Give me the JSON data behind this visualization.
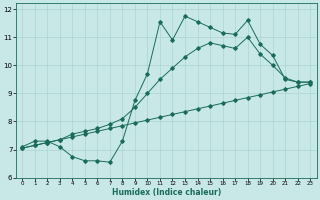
{
  "xlabel": "Humidex (Indice chaleur)",
  "bg_color": "#c8e8e8",
  "grid_color": "#aad4cc",
  "line_color": "#1a6b5a",
  "xlim": [
    -0.5,
    23.5
  ],
  "ylim": [
    6,
    12.2
  ],
  "xticks": [
    0,
    1,
    2,
    3,
    4,
    5,
    6,
    7,
    8,
    9,
    10,
    11,
    12,
    13,
    14,
    15,
    16,
    17,
    18,
    19,
    20,
    21,
    22,
    23
  ],
  "yticks": [
    6,
    7,
    8,
    9,
    10,
    11,
    12
  ],
  "series1_x": [
    0,
    1,
    2,
    3,
    4,
    5,
    6,
    7,
    8,
    9,
    10,
    11,
    12,
    13,
    14,
    15,
    16,
    17,
    18,
    19,
    20,
    21,
    22,
    23
  ],
  "series1_y": [
    7.1,
    7.3,
    7.3,
    7.1,
    6.75,
    6.6,
    6.6,
    6.55,
    7.3,
    8.75,
    9.7,
    11.55,
    10.9,
    11.75,
    11.55,
    11.35,
    11.15,
    11.1,
    11.6,
    10.75,
    10.35,
    9.5,
    9.4,
    9.4
  ],
  "series2_x": [
    0,
    1,
    2,
    3,
    4,
    5,
    6,
    7,
    8,
    9,
    10,
    11,
    12,
    13,
    14,
    15,
    16,
    17,
    18,
    19,
    20,
    21,
    22,
    23
  ],
  "series2_y": [
    7.05,
    7.15,
    7.25,
    7.35,
    7.45,
    7.55,
    7.65,
    7.75,
    7.85,
    7.95,
    8.05,
    8.15,
    8.25,
    8.35,
    8.45,
    8.55,
    8.65,
    8.75,
    8.85,
    8.95,
    9.05,
    9.15,
    9.25,
    9.35
  ],
  "series3_x": [
    0,
    1,
    2,
    3,
    4,
    5,
    6,
    7,
    8,
    9,
    10,
    11,
    12,
    13,
    14,
    15,
    16,
    17,
    18,
    19,
    20,
    21,
    22,
    23
  ],
  "series3_y": [
    7.05,
    7.15,
    7.25,
    7.35,
    7.55,
    7.65,
    7.75,
    7.9,
    8.1,
    8.5,
    9.0,
    9.5,
    9.9,
    10.3,
    10.6,
    10.8,
    10.7,
    10.6,
    11.0,
    10.4,
    10.0,
    9.55,
    9.4,
    9.4
  ]
}
